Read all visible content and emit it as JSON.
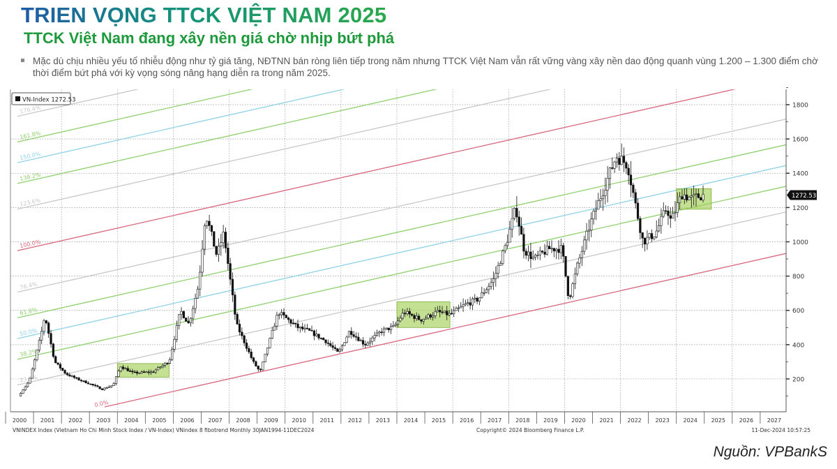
{
  "header": {
    "title": "TRIEN VỌNG TTCK VIỆT NAM 2025",
    "subtitle": "TTCK Việt Nam đang xây nền giá chờ nhịp bứt phá",
    "bullet": "Mặc dù chịu nhiều yếu tố nhiễu động như tỷ giá tăng, NĐTNN bán ròng liên tiếp trong năm nhưng TTCK Việt Nam vẫn rất vững vàng xây nền dao động quanh vùng 1.200 – 1.300 điểm chờ thời điểm bứt phá với kỳ vọng sóng nâng hạng diễn ra trong năm 2025."
  },
  "chart_data": {
    "type": "candlestick",
    "legend": "VN-Index 1272.53",
    "legend_position": "top-left",
    "last_value_label": "1272.53",
    "last_value": 1272.53,
    "ylim": [
      50,
      1900
    ],
    "yticks": [
      200,
      400,
      600,
      800,
      1000,
      1200,
      1400,
      1600,
      1800
    ],
    "xlim": [
      2000,
      2028
    ],
    "xtick_labels": [
      "2000",
      "2001",
      "2002",
      "2003",
      "2004",
      "2005",
      "2006",
      "2007",
      "2008",
      "2009",
      "2010",
      "2011",
      "2012",
      "2013",
      "2014",
      "2015",
      "2016",
      "2017",
      "2018",
      "2019",
      "2020",
      "2021",
      "2022",
      "2023",
      "2024",
      "2025",
      "2026",
      "2027"
    ],
    "grid": true,
    "series_name": "VN-Index (monthly, approx.)",
    "keypoints": [
      [
        2000.5,
        100
      ],
      [
        2000.9,
        190
      ],
      [
        2001.3,
        450
      ],
      [
        2001.45,
        570
      ],
      [
        2001.8,
        300
      ],
      [
        2002.2,
        230
      ],
      [
        2002.6,
        200
      ],
      [
        2003.0,
        175
      ],
      [
        2003.5,
        140
      ],
      [
        2003.9,
        165
      ],
      [
        2004.15,
        275
      ],
      [
        2004.6,
        235
      ],
      [
        2005.3,
        240
      ],
      [
        2005.9,
        305
      ],
      [
        2006.3,
        600
      ],
      [
        2006.6,
        520
      ],
      [
        2006.95,
        750
      ],
      [
        2007.2,
        1170
      ],
      [
        2007.6,
        920
      ],
      [
        2007.85,
        1050
      ],
      [
        2008.3,
        520
      ],
      [
        2008.9,
        300
      ],
      [
        2009.15,
        240
      ],
      [
        2009.8,
        590
      ],
      [
        2010.5,
        500
      ],
      [
        2010.9,
        480
      ],
      [
        2011.5,
        420
      ],
      [
        2011.95,
        350
      ],
      [
        2012.35,
        480
      ],
      [
        2012.9,
        400
      ],
      [
        2013.5,
        480
      ],
      [
        2013.95,
        505
      ],
      [
        2014.3,
        590
      ],
      [
        2014.9,
        545
      ],
      [
        2015.5,
        590
      ],
      [
        2015.95,
        575
      ],
      [
        2016.5,
        635
      ],
      [
        2016.95,
        665
      ],
      [
        2017.5,
        780
      ],
      [
        2017.95,
        985
      ],
      [
        2018.3,
        1200
      ],
      [
        2018.6,
        950
      ],
      [
        2018.95,
        900
      ],
      [
        2019.5,
        960
      ],
      [
        2019.95,
        960
      ],
      [
        2020.2,
        660
      ],
      [
        2020.5,
        860
      ],
      [
        2020.95,
        1100
      ],
      [
        2021.3,
        1250
      ],
      [
        2021.9,
        1500
      ],
      [
        2022.3,
        1450
      ],
      [
        2022.6,
        1200
      ],
      [
        2022.85,
        1000
      ],
      [
        2023.3,
        1050
      ],
      [
        2023.7,
        1200
      ],
      [
        2023.85,
        1120
      ],
      [
        2024.25,
        1280
      ],
      [
        2024.6,
        1250
      ],
      [
        2024.95,
        1272.53
      ]
    ],
    "fib_levels": [
      {
        "label": "0.0%",
        "level": 0,
        "color": "#d8677e"
      },
      {
        "label": "23.6%",
        "level": 0.236,
        "color": "#c8c8c8"
      },
      {
        "label": "38.2%",
        "level": 0.382,
        "color": "#8fd06c"
      },
      {
        "label": "50.0%",
        "level": 0.5,
        "color": "#8fd2e6"
      },
      {
        "label": "61.8%",
        "level": 0.618,
        "color": "#8fd06c"
      },
      {
        "label": "76.4%",
        "level": 0.764,
        "color": "#c8c8c8"
      },
      {
        "label": "100.0%",
        "level": 1.0,
        "color": "#d8677e"
      },
      {
        "label": "123.6%",
        "level": 1.236,
        "color": "#c8c8c8"
      },
      {
        "label": "138.2%",
        "level": 1.382,
        "color": "#8fd06c"
      },
      {
        "label": "150.0%",
        "level": 1.5,
        "color": "#8fd2e6"
      },
      {
        "label": "161.8%",
        "level": 1.618,
        "color": "#8fd06c"
      },
      {
        "label": "176.4%",
        "level": 1.764,
        "color": "#c8c8c8"
      }
    ],
    "consolidation_zones": [
      {
        "from": 2004.0,
        "to": 2005.85,
        "low": 210,
        "high": 290
      },
      {
        "from": 2014.0,
        "to": 2015.9,
        "low": 500,
        "high": 650
      },
      {
        "from": 2024.0,
        "to": 2025.25,
        "low": 1190,
        "high": 1310
      }
    ],
    "zone_color": "#9ccc4a",
    "footer_left": "VNINDEX Index (Vietnam Ho Chi Minh Stock Index / VN-Index) VNindex 8 fibotrend  Monthly 30JAN1994-11DEC2024",
    "footer_center": "Copyright© 2024 Bloomberg Finance L.P.",
    "footer_right": "11-Dec-2024 10:57:25"
  },
  "source": "Nguồn: VPBankS"
}
